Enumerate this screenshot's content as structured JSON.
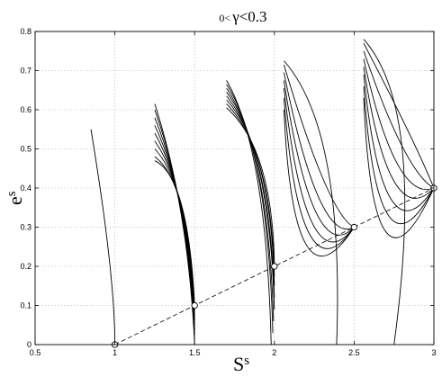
{
  "chart_data": {
    "type": "line",
    "title": {
      "prefix": "0<",
      "symbol": "γ<0.3"
    },
    "xlabel": {
      "base": "S",
      "sup": "s"
    },
    "ylabel": {
      "base": "e",
      "sup": "s"
    },
    "xlim": [
      0.5,
      3
    ],
    "ylim": [
      0,
      0.8
    ],
    "xticks": [
      0.5,
      1,
      1.5,
      2,
      2.5,
      3
    ],
    "xtick_labels": [
      "0.5",
      "1",
      "1.5",
      "2",
      "2.5",
      "3"
    ],
    "yticks": [
      0,
      0.1,
      0.2,
      0.3,
      0.4,
      0.5,
      0.6,
      0.7,
      0.8
    ],
    "ytick_labels": [
      "0",
      "0.1",
      "0.2",
      "0.3",
      "0.4",
      "0.5",
      "0.6",
      "0.7",
      "0.8"
    ],
    "grid": true,
    "groups": [
      {
        "center": 1.0,
        "marker_y": 0.0,
        "curves": [
          {
            "top": [
              0.85,
              0.55
            ],
            "ctrl": [
              1.0,
              0.18
            ],
            "bottom": [
              1.0,
              0.0
            ]
          }
        ]
      },
      {
        "center": 1.5,
        "marker_y": 0.1,
        "curves": [
          {
            "top": [
              1.25,
              0.615
            ],
            "ctrl": [
              1.46,
              0.35
            ],
            "bottom": [
              1.5,
              0.0
            ]
          },
          {
            "top": [
              1.25,
              0.6
            ],
            "ctrl": [
              1.46,
              0.36
            ],
            "bottom": [
              1.5,
              0.012
            ]
          },
          {
            "top": [
              1.25,
              0.58
            ],
            "ctrl": [
              1.46,
              0.37
            ],
            "bottom": [
              1.5,
              0.025
            ]
          },
          {
            "top": [
              1.25,
              0.56
            ],
            "ctrl": [
              1.46,
              0.38
            ],
            "bottom": [
              1.5,
              0.038
            ]
          },
          {
            "top": [
              1.25,
              0.54
            ],
            "ctrl": [
              1.46,
              0.39
            ],
            "bottom": [
              1.5,
              0.05
            ]
          },
          {
            "top": [
              1.25,
              0.52
            ],
            "ctrl": [
              1.46,
              0.4
            ],
            "bottom": [
              1.5,
              0.063
            ]
          },
          {
            "top": [
              1.25,
              0.5
            ],
            "ctrl": [
              1.46,
              0.41
            ],
            "bottom": [
              1.5,
              0.075
            ]
          },
          {
            "top": [
              1.25,
              0.48
            ],
            "ctrl": [
              1.46,
              0.42
            ],
            "bottom": [
              1.5,
              0.088
            ]
          },
          {
            "top": [
              1.25,
              0.47
            ],
            "ctrl": [
              1.46,
              0.43
            ],
            "bottom": [
              1.5,
              0.1
            ]
          }
        ]
      },
      {
        "center": 2.0,
        "marker_y": 0.2,
        "curves": [
          {
            "top": [
              1.7,
              0.675
            ],
            "ctrl": [
              1.95,
              0.5
            ],
            "bottom": [
              1.98,
              0.0
            ]
          },
          {
            "top": [
              1.7,
              0.665
            ],
            "ctrl": [
              1.96,
              0.5
            ],
            "bottom": [
              1.99,
              0.03
            ]
          },
          {
            "top": [
              1.7,
              0.655
            ],
            "ctrl": [
              1.96,
              0.5
            ],
            "bottom": [
              1.995,
              0.06
            ]
          },
          {
            "top": [
              1.7,
              0.645
            ],
            "ctrl": [
              1.97,
              0.5
            ],
            "bottom": [
              2.0,
              0.09
            ]
          },
          {
            "top": [
              1.7,
              0.635
            ],
            "ctrl": [
              1.97,
              0.5
            ],
            "bottom": [
              2.0,
              0.12
            ]
          },
          {
            "top": [
              1.7,
              0.625
            ],
            "ctrl": [
              1.98,
              0.5
            ],
            "bottom": [
              2.0,
              0.15
            ]
          },
          {
            "top": [
              1.7,
              0.615
            ],
            "ctrl": [
              1.98,
              0.5
            ],
            "bottom": [
              2.0,
              0.175
            ]
          },
          {
            "top": [
              1.7,
              0.605
            ],
            "ctrl": [
              1.99,
              0.5
            ],
            "bottom": [
              2.0,
              0.2
            ]
          }
        ]
      },
      {
        "center": 2.5,
        "marker_y": 0.3,
        "curves": [
          {
            "top": [
              2.06,
              0.725
            ],
            "ctrl": [
              2.44,
              0.55
            ],
            "bottom": [
              2.39,
              0.0
            ]
          },
          {
            "top": [
              2.06,
              0.715
            ],
            "ctrl": [
              2.34,
              0.33
            ],
            "bottom": [
              2.5,
              0.3
            ]
          },
          {
            "top": [
              2.06,
              0.695
            ],
            "ctrl": [
              2.28,
              0.25
            ],
            "bottom": [
              2.5,
              0.3
            ]
          },
          {
            "top": [
              2.06,
              0.675
            ],
            "ctrl": [
              2.24,
              0.19
            ],
            "bottom": [
              2.5,
              0.3
            ]
          },
          {
            "top": [
              2.06,
              0.655
            ],
            "ctrl": [
              2.2,
              0.14
            ],
            "bottom": [
              2.5,
              0.3
            ]
          },
          {
            "top": [
              2.06,
              0.63
            ],
            "ctrl": [
              2.16,
              0.1
            ],
            "bottom": [
              2.5,
              0.3
            ]
          },
          {
            "top": [
              2.06,
              0.6
            ],
            "ctrl": [
              2.12,
              0.06
            ],
            "bottom": [
              2.5,
              0.3
            ]
          }
        ]
      },
      {
        "center": 3.0,
        "marker_y": 0.4,
        "curves": [
          {
            "top": [
              2.56,
              0.78
            ],
            "ctrl": [
              2.95,
              0.6
            ],
            "bottom": [
              2.75,
              0.0
            ]
          },
          {
            "top": [
              2.56,
              0.77
            ],
            "ctrl": [
              2.88,
              0.52
            ],
            "bottom": [
              3.0,
              0.4
            ]
          },
          {
            "top": [
              2.56,
              0.75
            ],
            "ctrl": [
              2.82,
              0.44
            ],
            "bottom": [
              3.0,
              0.4
            ]
          },
          {
            "top": [
              2.56,
              0.73
            ],
            "ctrl": [
              2.76,
              0.36
            ],
            "bottom": [
              3.0,
              0.4
            ]
          },
          {
            "top": [
              2.56,
              0.71
            ],
            "ctrl": [
              2.72,
              0.28
            ],
            "bottom": [
              3.0,
              0.4
            ]
          },
          {
            "top": [
              2.56,
              0.69
            ],
            "ctrl": [
              2.68,
              0.2
            ],
            "bottom": [
              3.0,
              0.4
            ]
          },
          {
            "top": [
              2.56,
              0.66
            ],
            "ctrl": [
              2.65,
              0.13
            ],
            "bottom": [
              3.0,
              0.4
            ]
          },
          {
            "top": [
              2.56,
              0.63
            ],
            "ctrl": [
              2.62,
              0.06
            ],
            "bottom": [
              3.0,
              0.4
            ]
          }
        ]
      }
    ],
    "reference_line": {
      "from": [
        1.0,
        0.0
      ],
      "to": [
        3.0,
        0.4
      ],
      "style": "dashed"
    }
  }
}
